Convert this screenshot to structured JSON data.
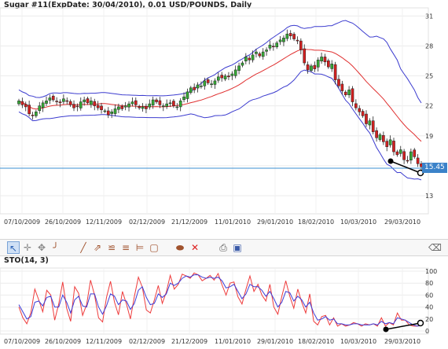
{
  "chart_title": "Sugar #11(ExpDate: 30/04/2010), 0.01 USD/POUNDS, Daily",
  "sto_title": "STO(14, 3)",
  "price_label": "15.45",
  "colors": {
    "bull": "#35a835",
    "bear": "#d32020",
    "wick": "#222222",
    "bollinger": "#3c3ccf",
    "ma": "#e03030",
    "hline": "#3b8fd0",
    "sto_k": "#ee3b3b",
    "sto_d": "#3d3dd8"
  },
  "toolbar": {
    "icons": [
      "cursor-icon",
      "crosshair-icon",
      "move-icon",
      "vertical-line-icon",
      "trend-line-icon",
      "ray-line-icon",
      "channel-icon",
      "fibonacci-icon",
      "gann-fan-icon",
      "ellipse-icon",
      "delete-last-icon",
      "print-icon",
      "save-icon",
      "trash-icon"
    ]
  },
  "chart_data": [
    {
      "type": "candlestick",
      "title": "Sugar #11(ExpDate: 30/04/2010), 0.01 USD/POUNDS, Daily",
      "x_ticks": [
        "07/10/2009",
        "26/10/2009",
        "12/11/2009",
        "02/12/2009",
        "21/12/2009",
        "11/01/2010",
        "29/01/2010",
        "18/02/2010",
        "10/03/2010",
        "29/03/2010"
      ],
      "y_ticks": [
        13,
        16,
        19,
        22,
        25,
        28,
        31
      ],
      "ylim": [
        11.5,
        31.5
      ],
      "close": [
        22.5,
        22.1,
        21.9,
        21.2,
        21.0,
        21.4,
        22.0,
        22.3,
        22.5,
        22.8,
        22.6,
        22.4,
        22.3,
        22.7,
        22.5,
        22.1,
        21.8,
        21.9,
        22.4,
        22.6,
        22.3,
        22.5,
        22.0,
        21.8,
        21.6,
        21.5,
        21.1,
        21.4,
        21.7,
        21.9,
        21.7,
        22.0,
        22.2,
        22.4,
        22.1,
        21.8,
        21.9,
        21.7,
        22.2,
        22.6,
        22.4,
        22.1,
        22.0,
        22.2,
        22.3,
        22.0,
        21.9,
        22.5,
        22.9,
        23.4,
        23.8,
        23.6,
        24.1,
        24.0,
        24.5,
        24.3,
        24.2,
        24.5,
        24.9,
        24.8,
        25.0,
        24.9,
        25.2,
        25.6,
        26.0,
        26.3,
        26.9,
        26.6,
        27.1,
        27.4,
        27.0,
        27.4,
        27.6,
        28.1,
        27.9,
        28.3,
        28.6,
        28.8,
        29.2,
        29.0,
        28.7,
        28.5,
        27.6,
        26.3,
        25.6,
        26.0,
        25.7,
        26.6,
        26.9,
        26.4,
        25.9,
        26.2,
        24.6,
        24.0,
        23.5,
        23.1,
        23.6,
        22.4,
        21.8,
        21.4,
        21.0,
        20.2,
        20.5,
        19.4,
        18.8,
        19.1,
        18.4,
        17.9,
        18.6,
        17.4,
        17.1,
        17.6,
        16.6,
        16.5,
        17.4,
        16.9,
        16.2,
        15.9
      ]
    },
    {
      "type": "line",
      "title": "STO(14, 3)",
      "x_ticks": [
        "07/10/2009",
        "26/10/2009",
        "12/11/2009",
        "02/12/2009",
        "21/12/2009",
        "11/01/2010",
        "29/01/2010",
        "18/02/2010",
        "10/03/2010",
        "29/03/2010"
      ],
      "y_ticks": [
        0,
        20,
        40,
        60,
        80,
        100
      ],
      "ylim": [
        0,
        100
      ],
      "series": [
        {
          "name": "%K",
          "values": [
            40,
            22,
            12,
            30,
            70,
            52,
            32,
            68,
            60,
            18,
            45,
            82,
            38,
            16,
            74,
            63,
            26,
            44,
            85,
            60,
            22,
            15,
            56,
            83,
            48,
            27,
            66,
            45,
            20,
            58,
            90,
            73,
            35,
            30,
            52,
            76,
            46,
            65,
            93,
            70,
            78,
            95,
            92,
            88,
            97,
            94,
            84,
            88,
            93,
            85,
            96,
            77,
            60,
            80,
            82,
            57,
            45,
            70,
            92,
            66,
            78,
            60,
            50,
            78,
            40,
            28,
            58,
            84,
            58,
            38,
            70,
            48,
            30,
            62,
            16,
            10,
            24,
            26,
            10,
            22,
            8,
            12,
            8,
            10,
            14,
            12,
            8,
            12,
            10,
            12,
            8,
            22,
            8,
            14,
            10,
            30,
            18,
            18,
            10,
            8,
            8,
            10
          ]
        },
        {
          "name": "%D",
          "values": [
            44,
            32,
            20,
            24,
            48,
            50,
            42,
            56,
            58,
            40,
            40,
            60,
            48,
            30,
            52,
            58,
            42,
            40,
            62,
            62,
            40,
            28,
            42,
            62,
            58,
            44,
            52,
            50,
            36,
            46,
            68,
            74,
            56,
            44,
            46,
            62,
            56,
            62,
            80,
            76,
            80,
            88,
            92,
            90,
            94,
            94,
            90,
            88,
            90,
            88,
            90,
            84,
            72,
            74,
            78,
            66,
            54,
            62,
            78,
            74,
            74,
            68,
            58,
            66,
            54,
            40,
            48,
            66,
            64,
            50,
            58,
            52,
            40,
            48,
            30,
            18,
            20,
            24,
            18,
            20,
            12,
            12,
            10,
            10,
            12,
            12,
            10,
            10,
            10,
            12,
            10,
            16,
            12,
            14,
            12,
            22,
            20,
            18,
            14,
            10,
            8,
            9
          ]
        }
      ]
    }
  ]
}
